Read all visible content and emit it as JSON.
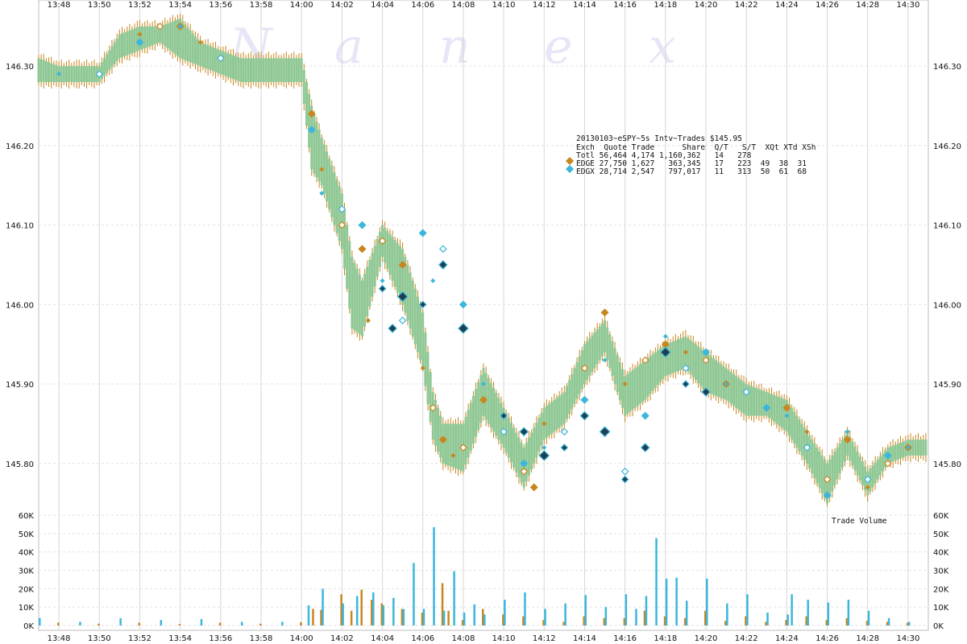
{
  "watermark": [
    "N",
    "a",
    "n",
    "e",
    "x"
  ],
  "colors": {
    "edge": "#c8861e",
    "edgx": "#3bb6dc",
    "edgx_dark": "#1f3f4f",
    "quote_bars": "#90c895",
    "grid": "#d6d6d6"
  },
  "legend": {
    "title": "20130103~eSPY~5s Intv~Trades $145.95",
    "header": "Exch  Quote Trade      Share  Q/T   S/T  XQt XTd XSh",
    "rows": [
      {
        "key": "totl",
        "text": "Totl 56,464 4,174 1,160,362   14   278",
        "marker": null
      },
      {
        "key": "edge",
        "text": "EDGE 27,750 1,627   363,345   17   223  49  38  31",
        "marker": "edge"
      },
      {
        "key": "edgx",
        "text": "EDGX 28,714 2,547   797,017   11   313  50  61  68",
        "marker": "edgx"
      }
    ]
  },
  "volume_label": "Trade Volume",
  "chart_data": [
    {
      "type": "scatter",
      "panel": "price",
      "x_tick_labels": [
        "13:48",
        "13:50",
        "13:52",
        "13:54",
        "13:56",
        "13:58",
        "14:00",
        "14:02",
        "14:04",
        "14:06",
        "14:08",
        "14:10",
        "14:12",
        "14:14",
        "14:16",
        "14:18",
        "14:20",
        "14:22",
        "14:24",
        "14:26",
        "14:28",
        "14:30"
      ],
      "y_tick_labels": [
        "146.30",
        "146.20",
        "146.10",
        "146.00",
        "145.90",
        "145.80"
      ],
      "y_ticks": [
        146.3,
        146.2,
        146.1,
        146.0,
        145.9,
        145.8
      ],
      "ylim": [
        145.74,
        146.365
      ],
      "grid": true,
      "x_range_minutes": [
        "13:47",
        "14:31"
      ],
      "quote_band": [
        [
          "13:47",
          146.28,
          146.31
        ],
        [
          "13:48",
          146.28,
          146.3
        ],
        [
          "13:49",
          146.28,
          146.3
        ],
        [
          "13:50",
          146.28,
          146.3
        ],
        [
          "13:51",
          146.31,
          146.34
        ],
        [
          "13:52",
          146.32,
          146.35
        ],
        [
          "13:53",
          146.33,
          146.35
        ],
        [
          "13:54",
          146.31,
          146.36
        ],
        [
          "13:55",
          146.3,
          146.33
        ],
        [
          "13:56",
          146.29,
          146.32
        ],
        [
          "13:57",
          146.28,
          146.31
        ],
        [
          "13:58",
          146.28,
          146.31
        ],
        [
          "13:59",
          146.28,
          146.31
        ],
        [
          "14:00",
          146.28,
          146.31
        ],
        [
          "14:00.5",
          146.17,
          146.25
        ],
        [
          "14:01",
          146.15,
          146.21
        ],
        [
          "14:02",
          146.07,
          146.14
        ],
        [
          "14:02.5",
          145.97,
          146.06
        ],
        [
          "14:03",
          145.96,
          146.03
        ],
        [
          "14:04",
          146.06,
          146.1
        ],
        [
          "14:05",
          146.0,
          146.07
        ],
        [
          "14:06",
          145.92,
          145.99
        ],
        [
          "14:06.5",
          145.83,
          145.89
        ],
        [
          "14:07",
          145.8,
          145.85
        ],
        [
          "14:08",
          145.79,
          145.85
        ],
        [
          "14:09",
          145.86,
          145.92
        ],
        [
          "14:10",
          145.82,
          145.87
        ],
        [
          "14:11",
          145.77,
          145.82
        ],
        [
          "14:12",
          145.83,
          145.87
        ],
        [
          "14:13",
          145.85,
          145.89
        ],
        [
          "14:14",
          145.9,
          145.95
        ],
        [
          "14:15",
          145.94,
          145.98
        ],
        [
          "14:16",
          145.86,
          145.91
        ],
        [
          "14:17",
          145.88,
          145.93
        ],
        [
          "14:18",
          145.91,
          145.95
        ],
        [
          "14:19",
          145.92,
          145.96
        ],
        [
          "14:20",
          145.89,
          145.94
        ],
        [
          "14:21",
          145.88,
          145.92
        ],
        [
          "14:22",
          145.86,
          145.9
        ],
        [
          "14:23",
          145.86,
          145.89
        ],
        [
          "14:24",
          145.84,
          145.88
        ],
        [
          "14:25",
          145.8,
          145.84
        ],
        [
          "14:26",
          145.75,
          145.8
        ],
        [
          "14:27",
          145.81,
          145.84
        ],
        [
          "14:28",
          145.76,
          145.79
        ],
        [
          "14:29",
          145.8,
          145.82
        ],
        [
          "14:30",
          145.81,
          145.83
        ],
        [
          "14:31",
          145.81,
          145.83
        ]
      ],
      "series": [
        {
          "name": "EDGE",
          "color": "#c8861e",
          "points": [
            [
              "13:52",
              146.34
            ],
            [
              "13:53",
              146.35
            ],
            [
              "13:54",
              146.35
            ],
            [
              "13:55",
              146.33
            ],
            [
              "13:56",
              146.31
            ],
            [
              "14:00.5",
              146.24
            ],
            [
              "14:01",
              146.17
            ],
            [
              "14:02",
              146.1
            ],
            [
              "14:03",
              146.07
            ],
            [
              "14:03.3",
              145.98
            ],
            [
              "14:04",
              146.08
            ],
            [
              "14:05",
              146.05
            ],
            [
              "14:06",
              145.92
            ],
            [
              "14:06.5",
              145.87
            ],
            [
              "14:07",
              145.83
            ],
            [
              "14:07.5",
              145.81
            ],
            [
              "14:08",
              145.82
            ],
            [
              "14:09",
              145.88
            ],
            [
              "14:10",
              145.84
            ],
            [
              "14:11",
              145.79
            ],
            [
              "14:11.5",
              145.77
            ],
            [
              "14:12",
              145.85
            ],
            [
              "14:14",
              145.92
            ],
            [
              "14:15",
              145.99
            ],
            [
              "14:16",
              145.9
            ],
            [
              "14:17",
              145.93
            ],
            [
              "14:18",
              145.95
            ],
            [
              "14:19",
              145.94
            ],
            [
              "14:20",
              145.93
            ],
            [
              "14:21",
              145.9
            ],
            [
              "14:22",
              145.89
            ],
            [
              "14:23",
              145.87
            ],
            [
              "14:24",
              145.87
            ],
            [
              "14:25",
              145.84
            ],
            [
              "14:26",
              145.78
            ],
            [
              "14:27",
              145.83
            ],
            [
              "14:28",
              145.77
            ],
            [
              "14:29",
              145.8
            ],
            [
              "14:30",
              145.82
            ]
          ]
        },
        {
          "name": "EDGX",
          "color": "#3bb6dc",
          "points": [
            [
              "13:48",
              146.29
            ],
            [
              "13:50",
              146.29
            ],
            [
              "13:52",
              146.33
            ],
            [
              "13:54",
              146.35
            ],
            [
              "13:56",
              146.31
            ],
            [
              "14:00.5",
              146.22
            ],
            [
              "14:01",
              146.14
            ],
            [
              "14:02",
              146.12
            ],
            [
              "14:03",
              146.1
            ],
            [
              "14:04",
              146.03
            ],
            [
              "14:05",
              145.98
            ],
            [
              "14:06",
              146.09
            ],
            [
              "14:06.5",
              146.03
            ],
            [
              "14:07",
              146.07
            ],
            [
              "14:08",
              146.0
            ],
            [
              "14:09",
              145.9
            ],
            [
              "14:10",
              145.84
            ],
            [
              "14:11",
              145.8
            ],
            [
              "14:12",
              145.82
            ],
            [
              "14:13",
              145.84
            ],
            [
              "14:14",
              145.88
            ],
            [
              "14:15",
              145.93
            ],
            [
              "14:16",
              145.79
            ],
            [
              "14:17",
              145.86
            ],
            [
              "14:18",
              145.96
            ],
            [
              "14:19",
              145.92
            ],
            [
              "14:20",
              145.94
            ],
            [
              "14:21",
              145.9
            ],
            [
              "14:22",
              145.89
            ],
            [
              "14:23",
              145.87
            ],
            [
              "14:24",
              145.86
            ],
            [
              "14:25",
              145.82
            ],
            [
              "14:26",
              145.76
            ],
            [
              "14:27",
              145.84
            ],
            [
              "14:28",
              145.78
            ],
            [
              "14:29",
              145.81
            ],
            [
              "14:30",
              145.82
            ]
          ]
        },
        {
          "name": "EDGX-cross",
          "color": "#1f3f4f",
          "points": [
            [
              "14:04",
              146.02
            ],
            [
              "14:04.5",
              145.97
            ],
            [
              "14:05",
              146.01
            ],
            [
              "14:06",
              146.0
            ],
            [
              "14:07",
              146.05
            ],
            [
              "14:08",
              145.97
            ],
            [
              "14:10",
              145.86
            ],
            [
              "14:11",
              145.84
            ],
            [
              "14:12",
              145.81
            ],
            [
              "14:13",
              145.82
            ],
            [
              "14:14",
              145.86
            ],
            [
              "14:15",
              145.84
            ],
            [
              "14:16",
              145.78
            ],
            [
              "14:17",
              145.82
            ],
            [
              "14:18",
              145.94
            ],
            [
              "14:19",
              145.9
            ],
            [
              "14:20",
              145.89
            ]
          ]
        }
      ]
    },
    {
      "type": "bar",
      "panel": "volume",
      "y_tick_labels": [
        "0K",
        "10K",
        "20K",
        "30K",
        "40K",
        "50K",
        "60K"
      ],
      "ylim": [
        0,
        60000
      ],
      "series": [
        {
          "name": "EDGE",
          "color": "#c8861e",
          "points": [
            [
              "13:48",
              1500
            ],
            [
              "13:50",
              1000
            ],
            [
              "13:52",
              1500
            ],
            [
              "13:54",
              800
            ],
            [
              "13:56",
              1500
            ],
            [
              "13:58",
              1000
            ],
            [
              "14:00",
              1800
            ],
            [
              "14:00.6",
              9000
            ],
            [
              "14:01",
              8500
            ],
            [
              "14:02",
              17000
            ],
            [
              "14:02.5",
              8000
            ],
            [
              "14:03",
              19500
            ],
            [
              "14:03.5",
              14000
            ],
            [
              "14:04",
              12000
            ],
            [
              "14:05",
              9000
            ],
            [
              "14:06",
              7000
            ],
            [
              "14:07",
              23000
            ],
            [
              "14:07.3",
              8000
            ],
            [
              "14:08",
              3000
            ],
            [
              "14:09",
              9000
            ],
            [
              "14:10",
              6000
            ],
            [
              "14:11",
              5000
            ],
            [
              "14:12",
              3000
            ],
            [
              "14:13",
              2000
            ],
            [
              "14:14",
              5000
            ],
            [
              "14:15",
              4000
            ],
            [
              "14:16",
              4000
            ],
            [
              "14:17",
              8000
            ],
            [
              "14:18",
              5000
            ],
            [
              "14:19",
              4000
            ],
            [
              "14:20",
              8000
            ],
            [
              "14:21",
              2500
            ],
            [
              "14:22",
              5000
            ],
            [
              "14:23",
              2000
            ],
            [
              "14:24",
              3000
            ],
            [
              "14:25",
              5000
            ],
            [
              "14:26",
              3000
            ],
            [
              "14:27",
              4000
            ],
            [
              "14:28",
              2500
            ],
            [
              "14:29",
              2000
            ],
            [
              "14:30",
              1500
            ]
          ]
        },
        {
          "name": "EDGX",
          "color": "#3bb6dc",
          "points": [
            [
              "13:47",
              4000
            ],
            [
              "13:49",
              2000
            ],
            [
              "13:51",
              4000
            ],
            [
              "13:53",
              3000
            ],
            [
              "13:55",
              3500
            ],
            [
              "13:57",
              2000
            ],
            [
              "13:59",
              2000
            ],
            [
              "14:00.3",
              11000
            ],
            [
              "14:01",
              20000
            ],
            [
              "14:02",
              12000
            ],
            [
              "14:02.7",
              16000
            ],
            [
              "14:03.5",
              18000
            ],
            [
              "14:04",
              11000
            ],
            [
              "14:04.5",
              15000
            ],
            [
              "14:05",
              9000
            ],
            [
              "14:05.5",
              34000
            ],
            [
              "14:06",
              9000
            ],
            [
              "14:06.5",
              53500
            ],
            [
              "14:07",
              8000
            ],
            [
              "14:07.5",
              29500
            ],
            [
              "14:08",
              7000
            ],
            [
              "14:08.5",
              11500
            ],
            [
              "14:09",
              6000
            ],
            [
              "14:10",
              14000
            ],
            [
              "14:11",
              18000
            ],
            [
              "14:12",
              9000
            ],
            [
              "14:13",
              12000
            ],
            [
              "14:14",
              16500
            ],
            [
              "14:15",
              10000
            ],
            [
              "14:16",
              17000
            ],
            [
              "14:16.5",
              9000
            ],
            [
              "14:17",
              16000
            ],
            [
              "14:17.5",
              47500
            ],
            [
              "14:18",
              25500
            ],
            [
              "14:18.5",
              26000
            ],
            [
              "14:19",
              13500
            ],
            [
              "14:20",
              25500
            ],
            [
              "14:21",
              12000
            ],
            [
              "14:22",
              17000
            ],
            [
              "14:23",
              7000
            ],
            [
              "14:24",
              6000
            ],
            [
              "14:24.2",
              17000
            ],
            [
              "14:25",
              14000
            ],
            [
              "14:26",
              12500
            ],
            [
              "14:27",
              14000
            ],
            [
              "14:28",
              8000
            ],
            [
              "14:29",
              4000
            ],
            [
              "14:30",
              2000
            ]
          ]
        }
      ]
    }
  ]
}
